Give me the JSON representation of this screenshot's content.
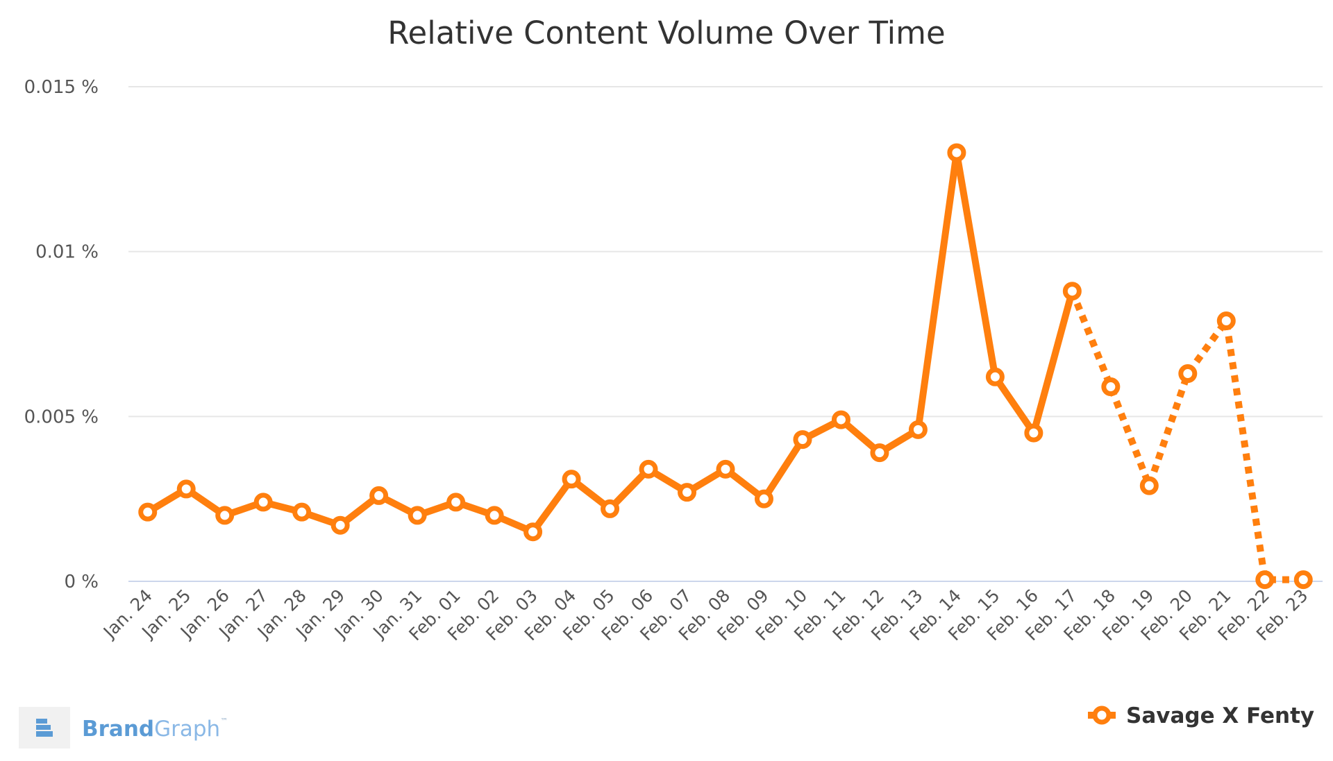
{
  "colors": {
    "series": "#ff7f0e",
    "grid": "#e6e6e6",
    "axis": "#ccd6eb",
    "brand": "#5b9bd5"
  },
  "branding": {
    "logo_icon": "brandgraph-logo-icon",
    "name_part1": "Brand",
    "name_part2": "Graph",
    "trademark": "™"
  },
  "chart_data": {
    "type": "line",
    "title": "Relative Content Volume Over Time",
    "xlabel": "",
    "ylabel": "",
    "ylim": [
      0,
      0.015
    ],
    "grid": true,
    "legend_position": "bottom-right",
    "ytick_values": [
      0,
      0.005,
      0.01,
      0.015
    ],
    "ytick_labels": [
      "0 %",
      "0.005 %",
      "0.01 %",
      "0.015 %"
    ],
    "categories": [
      "Jan. 24",
      "Jan. 25",
      "Jan. 26",
      "Jan. 27",
      "Jan. 28",
      "Jan. 29",
      "Jan. 30",
      "Jan. 31",
      "Feb. 01",
      "Feb. 02",
      "Feb. 03",
      "Feb. 04",
      "Feb. 05",
      "Feb. 06",
      "Feb. 07",
      "Feb. 08",
      "Feb. 09",
      "Feb. 10",
      "Feb. 11",
      "Feb. 12",
      "Feb. 13",
      "Feb. 14",
      "Feb. 15",
      "Feb. 16",
      "Feb. 17",
      "Feb. 18",
      "Feb. 19",
      "Feb. 20",
      "Feb. 21",
      "Feb. 22",
      "Feb. 23"
    ],
    "series": [
      {
        "name": "Savage X Fenty",
        "values": [
          0.0021,
          0.0028,
          0.002,
          0.0024,
          0.0021,
          0.0017,
          0.0026,
          0.002,
          0.0024,
          0.002,
          0.0015,
          0.0031,
          0.0022,
          0.0034,
          0.0027,
          0.0034,
          0.0025,
          0.0043,
          0.0049,
          0.0039,
          0.0046,
          0.013,
          0.0062,
          0.0045,
          0.0088,
          0.0059,
          0.0029,
          0.0063,
          0.0079,
          5e-05,
          5e-05
        ],
        "dashed_from_index": 24
      }
    ]
  }
}
